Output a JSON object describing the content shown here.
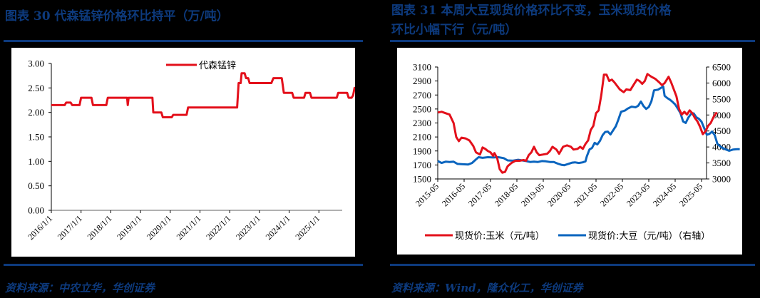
{
  "left": {
    "title": "图表 30   代森锰锌价格环比持平（万/吨）",
    "source": "资料来源：中农立华，华创证券",
    "chart_data": {
      "type": "line",
      "title": "代森锰锌价格环比持平（万/吨）",
      "xlabel": "",
      "ylabel": "万/吨",
      "ylim": [
        0,
        3
      ],
      "yticks": [
        "0.00",
        "0.50",
        "1.00",
        "1.50",
        "2.00",
        "2.50",
        "3.00"
      ],
      "xticks": [
        "2016/1/1",
        "2017/1/1",
        "2018/1/1",
        "2019/1/1",
        "2020/1/1",
        "2021/1/1",
        "2022/1/1",
        "2023/1/1",
        "2024/1/1",
        "2025/1/1"
      ],
      "grid": false,
      "legend_position": "top-center",
      "series": [
        {
          "name": "代森锰锌",
          "color": "#e3101b",
          "points": [
            [
              2016.0,
              2.15
            ],
            [
              2016.45,
              2.15
            ],
            [
              2016.5,
              2.2
            ],
            [
              2016.65,
              2.2
            ],
            [
              2016.7,
              2.15
            ],
            [
              2016.95,
              2.15
            ],
            [
              2017.0,
              2.3
            ],
            [
              2017.35,
              2.3
            ],
            [
              2017.4,
              2.15
            ],
            [
              2017.85,
              2.15
            ],
            [
              2017.9,
              2.3
            ],
            [
              2018.55,
              2.3
            ],
            [
              2018.57,
              2.15
            ],
            [
              2018.6,
              2.3
            ],
            [
              2019.4,
              2.3
            ],
            [
              2019.43,
              2.0
            ],
            [
              2019.7,
              2.0
            ],
            [
              2019.75,
              1.9
            ],
            [
              2020.05,
              1.9
            ],
            [
              2020.1,
              1.95
            ],
            [
              2020.55,
              1.95
            ],
            [
              2020.6,
              2.1
            ],
            [
              2022.25,
              2.1
            ],
            [
              2022.3,
              2.6
            ],
            [
              2022.37,
              2.6
            ],
            [
              2022.4,
              2.8
            ],
            [
              2022.5,
              2.8
            ],
            [
              2022.55,
              2.7
            ],
            [
              2022.62,
              2.7
            ],
            [
              2022.67,
              2.6
            ],
            [
              2023.4,
              2.6
            ],
            [
              2023.47,
              2.7
            ],
            [
              2023.75,
              2.7
            ],
            [
              2023.82,
              2.4
            ],
            [
              2024.1,
              2.4
            ],
            [
              2024.15,
              2.3
            ],
            [
              2024.5,
              2.3
            ],
            [
              2024.55,
              2.4
            ],
            [
              2024.7,
              2.4
            ],
            [
              2024.75,
              2.3
            ],
            [
              2025.6,
              2.3
            ],
            [
              2025.65,
              2.4
            ],
            [
              2025.95,
              2.4
            ],
            [
              2026.0,
              2.3
            ],
            [
              2026.1,
              2.3
            ],
            [
              2026.15,
              2.35
            ],
            [
              2026.2,
              2.5
            ],
            [
              2026.4,
              2.5
            ]
          ]
        }
      ]
    }
  },
  "right": {
    "title_line1": "图表 31   本周大豆现货价格环比不变，玉米现货价格",
    "title_line2": "环比小幅下行（元/吨）",
    "source": "资料来源：Wind，隆众化工，华创证券",
    "chart_data": {
      "type": "line",
      "title": "本周大豆现货价格环比不变，玉米现货价格环比小幅下行（元/吨）",
      "xlabel": "",
      "ylabel_left": "元/吨",
      "ylabel_right": "元/吨（右轴）",
      "ylim_left": [
        1500,
        3100
      ],
      "ylim_right": [
        3000,
        6500
      ],
      "yticks_left": [
        "1500",
        "1700",
        "1900",
        "2100",
        "2300",
        "2500",
        "2700",
        "2900",
        "3100"
      ],
      "yticks_right": [
        "3000",
        "3500",
        "4000",
        "4500",
        "5000",
        "5500",
        "6000",
        "6500"
      ],
      "xticks": [
        "2015-05",
        "2016-05",
        "2017-05",
        "2018-05",
        "2019-05",
        "2020-05",
        "2021-05",
        "2022-05",
        "2023-05",
        "2024-05",
        "2025-05"
      ],
      "grid": false,
      "legend_position": "bottom",
      "series": [
        {
          "name": "现货价:玉米（元/吨）",
          "axis": "left",
          "color": "#e3101b",
          "points": [
            [
              2015.4,
              2450
            ],
            [
              2015.55,
              2460
            ],
            [
              2015.7,
              2440
            ],
            [
              2015.85,
              2420
            ],
            [
              2016.0,
              2300
            ],
            [
              2016.1,
              2100
            ],
            [
              2016.2,
              2040
            ],
            [
              2016.3,
              2090
            ],
            [
              2016.45,
              2080
            ],
            [
              2016.6,
              2050
            ],
            [
              2016.75,
              1970
            ],
            [
              2016.85,
              1880
            ],
            [
              2017.0,
              1850
            ],
            [
              2017.1,
              1950
            ],
            [
              2017.2,
              1930
            ],
            [
              2017.3,
              1900
            ],
            [
              2017.4,
              1880
            ],
            [
              2017.5,
              1830
            ],
            [
              2017.55,
              1870
            ],
            [
              2017.65,
              1800
            ],
            [
              2017.75,
              1640
            ],
            [
              2017.85,
              1590
            ],
            [
              2017.95,
              1600
            ],
            [
              2018.05,
              1680
            ],
            [
              2018.2,
              1730
            ],
            [
              2018.35,
              1760
            ],
            [
              2018.5,
              1760
            ],
            [
              2018.65,
              1770
            ],
            [
              2018.75,
              1760
            ],
            [
              2018.85,
              1840
            ],
            [
              2018.95,
              1880
            ],
            [
              2019.05,
              1960
            ],
            [
              2019.15,
              1880
            ],
            [
              2019.25,
              1840
            ],
            [
              2019.4,
              1850
            ],
            [
              2019.55,
              1860
            ],
            [
              2019.65,
              1900
            ],
            [
              2019.75,
              1960
            ],
            [
              2019.9,
              1920
            ],
            [
              2020.0,
              1860
            ],
            [
              2020.15,
              1960
            ],
            [
              2020.3,
              1980
            ],
            [
              2020.45,
              1960
            ],
            [
              2020.55,
              1920
            ],
            [
              2020.7,
              1930
            ],
            [
              2020.8,
              1960
            ],
            [
              2020.9,
              1930
            ],
            [
              2021.0,
              2000
            ],
            [
              2021.1,
              2050
            ],
            [
              2021.2,
              2200
            ],
            [
              2021.3,
              2260
            ],
            [
              2021.4,
              2440
            ],
            [
              2021.5,
              2480
            ],
            [
              2021.6,
              2700
            ],
            [
              2021.7,
              2990
            ],
            [
              2021.8,
              2990
            ],
            [
              2021.9,
              2900
            ],
            [
              2022.0,
              2920
            ],
            [
              2022.1,
              2880
            ],
            [
              2022.2,
              2830
            ],
            [
              2022.3,
              2780
            ],
            [
              2022.45,
              2740
            ],
            [
              2022.55,
              2780
            ],
            [
              2022.7,
              2770
            ],
            [
              2022.85,
              2860
            ],
            [
              2022.95,
              2920
            ],
            [
              2023.05,
              2900
            ],
            [
              2023.15,
              2860
            ],
            [
              2023.25,
              2900
            ],
            [
              2023.35,
              3000
            ],
            [
              2023.5,
              2960
            ],
            [
              2023.65,
              2930
            ],
            [
              2023.8,
              2880
            ],
            [
              2023.9,
              2840
            ],
            [
              2024.0,
              2870
            ],
            [
              2024.15,
              2960
            ],
            [
              2024.25,
              2880
            ],
            [
              2024.35,
              2780
            ],
            [
              2024.45,
              2680
            ],
            [
              2024.55,
              2500
            ],
            [
              2024.65,
              2420
            ],
            [
              2024.75,
              2460
            ],
            [
              2024.85,
              2420
            ],
            [
              2024.95,
              2480
            ],
            [
              2025.05,
              2440
            ],
            [
              2025.15,
              2370
            ],
            [
              2025.25,
              2320
            ],
            [
              2025.35,
              2240
            ],
            [
              2025.45,
              2140
            ],
            [
              2025.55,
              2180
            ],
            [
              2025.65,
              2260
            ],
            [
              2025.75,
              2300
            ],
            [
              2025.85,
              2380
            ],
            [
              2025.95,
              2440
            ],
            [
              2026.0,
              2440
            ]
          ]
        },
        {
          "name": "现货价:大豆（元/吨）（右轴）",
          "axis": "right",
          "color": "#0a64be",
          "points": [
            [
              2015.4,
              3560
            ],
            [
              2015.55,
              3500
            ],
            [
              2015.7,
              3540
            ],
            [
              2015.85,
              3530
            ],
            [
              2016.0,
              3540
            ],
            [
              2016.15,
              3470
            ],
            [
              2016.35,
              3460
            ],
            [
              2016.55,
              3450
            ],
            [
              2016.7,
              3500
            ],
            [
              2016.85,
              3610
            ],
            [
              2016.95,
              3680
            ],
            [
              2017.1,
              3660
            ],
            [
              2017.3,
              3680
            ],
            [
              2017.5,
              3670
            ],
            [
              2017.7,
              3680
            ],
            [
              2017.9,
              3650
            ],
            [
              2018.05,
              3580
            ],
            [
              2018.25,
              3570
            ],
            [
              2018.45,
              3600
            ],
            [
              2018.6,
              3580
            ],
            [
              2018.75,
              3560
            ],
            [
              2018.9,
              3530
            ],
            [
              2019.05,
              3540
            ],
            [
              2019.2,
              3530
            ],
            [
              2019.35,
              3560
            ],
            [
              2019.5,
              3550
            ],
            [
              2019.65,
              3530
            ],
            [
              2019.8,
              3530
            ],
            [
              2019.95,
              3480
            ],
            [
              2020.1,
              3440
            ],
            [
              2020.2,
              3430
            ],
            [
              2020.35,
              3470
            ],
            [
              2020.5,
              3510
            ],
            [
              2020.6,
              3520
            ],
            [
              2020.75,
              3500
            ],
            [
              2020.9,
              3520
            ],
            [
              2021.0,
              3550
            ],
            [
              2021.05,
              3700
            ],
            [
              2021.15,
              3920
            ],
            [
              2021.25,
              3970
            ],
            [
              2021.35,
              4130
            ],
            [
              2021.45,
              4080
            ],
            [
              2021.55,
              4190
            ],
            [
              2021.65,
              4370
            ],
            [
              2021.75,
              4470
            ],
            [
              2021.85,
              4480
            ],
            [
              2021.95,
              4390
            ],
            [
              2022.05,
              4520
            ],
            [
              2022.15,
              4650
            ],
            [
              2022.25,
              4860
            ],
            [
              2022.35,
              5100
            ],
            [
              2022.5,
              5140
            ],
            [
              2022.6,
              5200
            ],
            [
              2022.75,
              5260
            ],
            [
              2022.9,
              5240
            ],
            [
              2023.0,
              5290
            ],
            [
              2023.1,
              5420
            ],
            [
              2023.2,
              5280
            ],
            [
              2023.3,
              5190
            ],
            [
              2023.4,
              5250
            ],
            [
              2023.5,
              5430
            ],
            [
              2023.6,
              5770
            ],
            [
              2023.75,
              5790
            ],
            [
              2023.85,
              5840
            ],
            [
              2023.95,
              5890
            ],
            [
              2024.0,
              5600
            ],
            [
              2024.1,
              5530
            ],
            [
              2024.2,
              5480
            ],
            [
              2024.3,
              5410
            ],
            [
              2024.4,
              5330
            ],
            [
              2024.5,
              5200
            ],
            [
              2024.6,
              5060
            ],
            [
              2024.7,
              4800
            ],
            [
              2024.8,
              4750
            ],
            [
              2024.9,
              4920
            ],
            [
              2025.0,
              5030
            ],
            [
              2025.1,
              5050
            ],
            [
              2025.2,
              4930
            ],
            [
              2025.3,
              4880
            ],
            [
              2025.4,
              4790
            ],
            [
              2025.5,
              4590
            ],
            [
              2025.6,
              4380
            ],
            [
              2025.7,
              4410
            ],
            [
              2025.8,
              4480
            ],
            [
              2025.9,
              4370
            ],
            [
              2026.0,
              4100
            ],
            [
              2026.15,
              3990
            ],
            [
              2026.3,
              3930
            ],
            [
              2026.45,
              3880
            ],
            [
              2026.6,
              3920
            ],
            [
              2026.75,
              3930
            ],
            [
              2026.85,
              3930
            ]
          ]
        }
      ]
    }
  }
}
